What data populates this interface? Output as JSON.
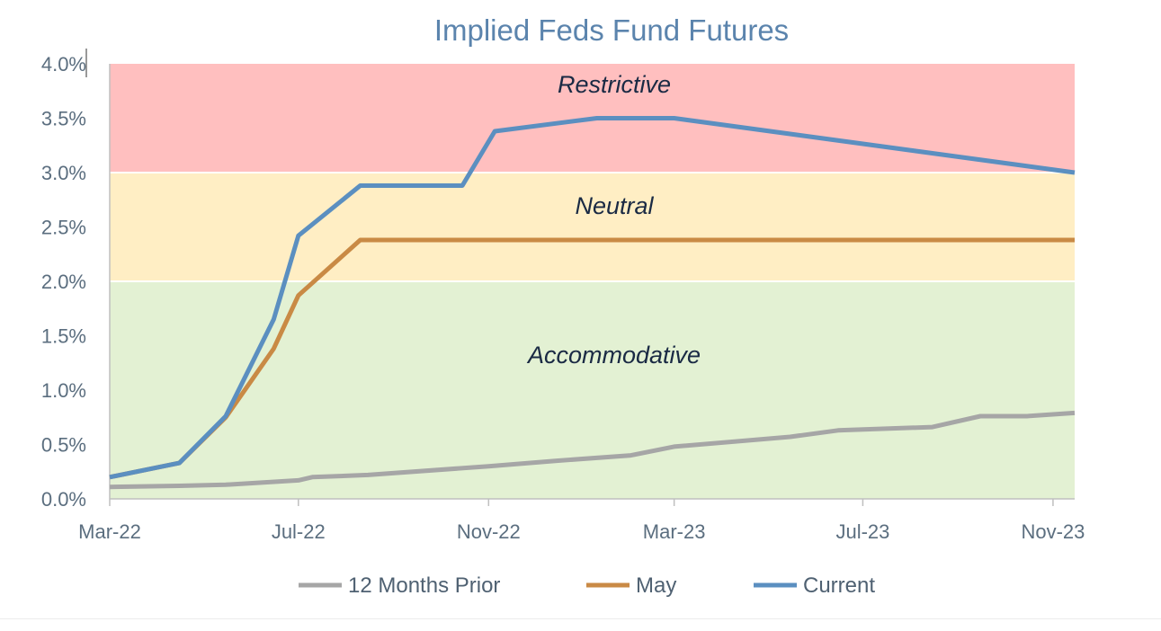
{
  "chart_data": {
    "type": "line",
    "title": "Implied Feds Fund Futures",
    "xlabel": "",
    "ylabel": "",
    "x_range": [
      "2022-03-01",
      "2023-11-15"
    ],
    "x_ticks": [
      {
        "date": "2022-03-01",
        "label": "Mar-22"
      },
      {
        "date": "2022-07-01",
        "label": "Jul-22"
      },
      {
        "date": "2022-11-01",
        "label": "Nov-22"
      },
      {
        "date": "2023-03-01",
        "label": "Mar-23"
      },
      {
        "date": "2023-07-01",
        "label": "Jul-23"
      },
      {
        "date": "2023-11-01",
        "label": "Nov-23"
      }
    ],
    "ylim": [
      0,
      4.0
    ],
    "y_ticks": [
      {
        "value": 0.0,
        "label": "0.0%"
      },
      {
        "value": 0.5,
        "label": "0.5%"
      },
      {
        "value": 1.0,
        "label": "1.0%"
      },
      {
        "value": 1.5,
        "label": "1.5%"
      },
      {
        "value": 2.0,
        "label": "2.0%"
      },
      {
        "value": 2.5,
        "label": "2.5%"
      },
      {
        "value": 3.0,
        "label": "3.0%"
      },
      {
        "value": 3.5,
        "label": "3.5%"
      },
      {
        "value": 4.0,
        "label": "4.0%"
      }
    ],
    "zones": [
      {
        "name": "Restrictive",
        "from": 3.0,
        "to": 4.0,
        "color": "#ffbfbf"
      },
      {
        "name": "Neutral",
        "from": 2.0,
        "to": 3.0,
        "color": "#ffeec4"
      },
      {
        "name": "Accommodative",
        "from": 0.0,
        "to": 2.0,
        "color": "#e3f1d3"
      }
    ],
    "legend_position": "bottom",
    "series": [
      {
        "name": "12 Months Prior",
        "color": "#a6a6a6",
        "points": [
          {
            "x": "2022-03-01",
            "y": 0.11
          },
          {
            "x": "2022-04-15",
            "y": 0.12
          },
          {
            "x": "2022-05-15",
            "y": 0.13
          },
          {
            "x": "2022-07-01",
            "y": 0.17
          },
          {
            "x": "2022-07-10",
            "y": 0.2
          },
          {
            "x": "2022-08-15",
            "y": 0.22
          },
          {
            "x": "2022-11-01",
            "y": 0.3
          },
          {
            "x": "2022-12-15",
            "y": 0.35
          },
          {
            "x": "2023-02-01",
            "y": 0.4
          },
          {
            "x": "2023-03-01",
            "y": 0.48
          },
          {
            "x": "2023-05-15",
            "y": 0.57
          },
          {
            "x": "2023-06-15",
            "y": 0.63
          },
          {
            "x": "2023-08-15",
            "y": 0.66
          },
          {
            "x": "2023-09-15",
            "y": 0.76
          },
          {
            "x": "2023-10-15",
            "y": 0.76
          },
          {
            "x": "2023-11-15",
            "y": 0.79
          }
        ]
      },
      {
        "name": "May",
        "color": "#c98a45",
        "points": [
          {
            "x": "2022-03-01",
            "y": 0.2
          },
          {
            "x": "2022-04-15",
            "y": 0.33
          },
          {
            "x": "2022-05-15",
            "y": 0.75
          },
          {
            "x": "2022-06-15",
            "y": 1.38
          },
          {
            "x": "2022-07-01",
            "y": 1.87
          },
          {
            "x": "2022-08-10",
            "y": 2.38
          },
          {
            "x": "2023-11-15",
            "y": 2.38
          }
        ]
      },
      {
        "name": "Current",
        "color": "#5b8fc0",
        "points": [
          {
            "x": "2022-03-01",
            "y": 0.2
          },
          {
            "x": "2022-04-15",
            "y": 0.33
          },
          {
            "x": "2022-05-15",
            "y": 0.76
          },
          {
            "x": "2022-06-15",
            "y": 1.65
          },
          {
            "x": "2022-07-01",
            "y": 2.42
          },
          {
            "x": "2022-08-10",
            "y": 2.88
          },
          {
            "x": "2022-10-15",
            "y": 2.88
          },
          {
            "x": "2022-11-05",
            "y": 3.38
          },
          {
            "x": "2023-01-10",
            "y": 3.5
          },
          {
            "x": "2023-03-01",
            "y": 3.5
          },
          {
            "x": "2023-11-15",
            "y": 3.0
          }
        ]
      }
    ]
  }
}
